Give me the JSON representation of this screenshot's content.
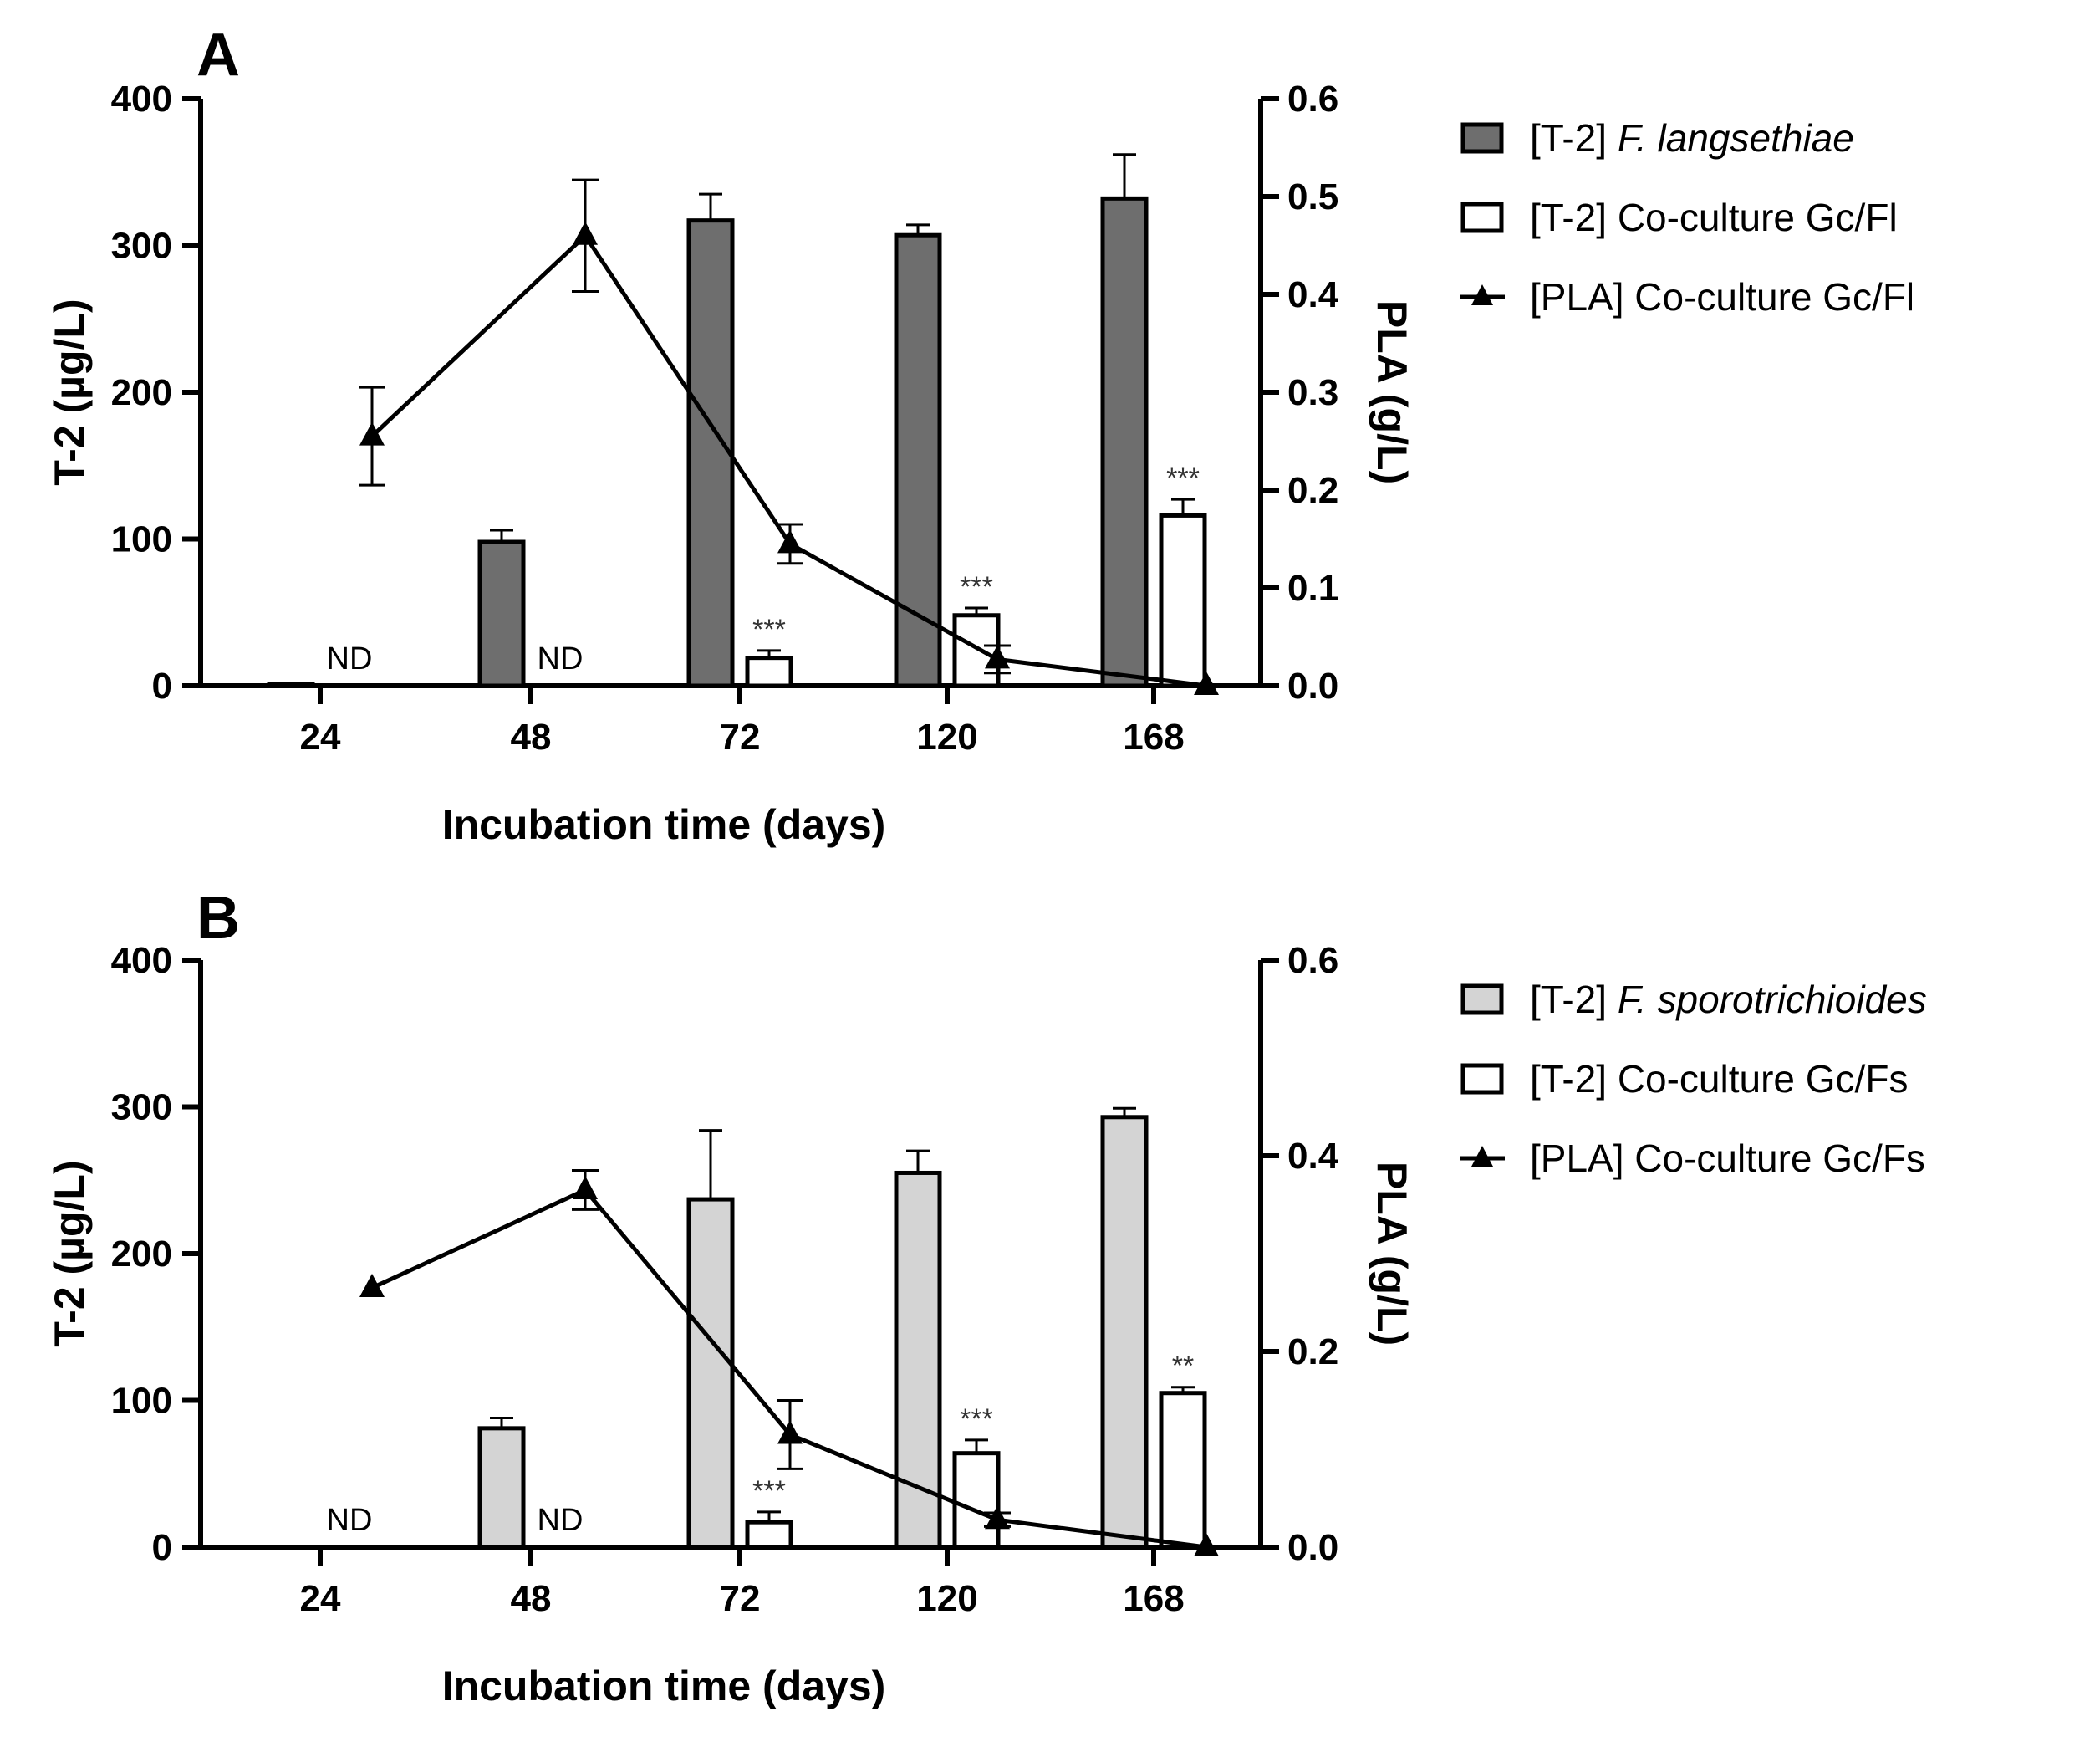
{
  "chart_data": [
    {
      "type": "bar",
      "panel_label": "A",
      "xlabel": "Incubation time (days)",
      "ylabel": "T-2 (µg/L)",
      "y2label": "PLA (g/L)",
      "categories": [
        "24",
        "48",
        "72",
        "120",
        "168"
      ],
      "ylim": [
        0,
        400
      ],
      "y2lim": [
        0,
        0.6
      ],
      "yticks": [
        "0",
        "100",
        "200",
        "300",
        "400"
      ],
      "y2ticks": [
        "0.0",
        "0.1",
        "0.2",
        "0.3",
        "0.4",
        "0.5",
        "0.6"
      ],
      "grid": false,
      "legend_position": "right",
      "series": [
        {
          "name_prefix": "[T-2]",
          "name_italic": "F. langsethiae",
          "kind": "bar",
          "fill": "#6e6e6e",
          "values": [
            1,
            98,
            317,
            307,
            332
          ],
          "errors": [
            0,
            8,
            18,
            7,
            30
          ]
        },
        {
          "name_prefix": "[T-2]",
          "name_plain": "Co-culture Gc/Fl",
          "kind": "bar",
          "fill": "#ffffff",
          "values": [
            null,
            null,
            19,
            48,
            116
          ],
          "errors": [
            0,
            0,
            5,
            5,
            11
          ],
          "nd_labels": [
            "ND",
            "ND",
            "",
            "",
            ""
          ],
          "significance": [
            "",
            "",
            "***",
            "***",
            "***"
          ]
        },
        {
          "name_prefix": "[PLA]",
          "name_plain": "Co-culture Gc/Fl",
          "kind": "line",
          "axis": "right",
          "marker": "triangle",
          "x_offsets_note": "between categories",
          "values": [
            0.255,
            0.46,
            0.145,
            0.027,
            0.0
          ],
          "errors": [
            0.05,
            0.057,
            0.02,
            0.014,
            0.0
          ]
        }
      ]
    },
    {
      "type": "bar",
      "panel_label": "B",
      "xlabel": "Incubation time (days)",
      "ylabel": "T-2 (µg/L)",
      "y2label": "PLA (g/L)",
      "categories": [
        "24",
        "48",
        "72",
        "120",
        "168"
      ],
      "ylim": [
        0,
        400
      ],
      "y2lim": [
        0,
        0.6
      ],
      "yticks": [
        "0",
        "100",
        "200",
        "300",
        "400"
      ],
      "y2ticks": [
        "0.0",
        "0.2",
        "0.4",
        "0.6"
      ],
      "grid": false,
      "legend_position": "right",
      "series": [
        {
          "name_prefix": "[T-2]",
          "name_italic": "F. sporotrichioides",
          "kind": "bar",
          "fill": "#d4d4d4",
          "values": [
            null,
            81,
            237,
            255,
            293
          ],
          "errors": [
            0,
            7,
            47,
            15,
            6
          ]
        },
        {
          "name_prefix": "[T-2]",
          "name_plain": "Co-culture Gc/Fs",
          "kind": "bar",
          "fill": "#ffffff",
          "values": [
            null,
            null,
            17,
            64,
            105
          ],
          "errors": [
            0,
            0,
            7,
            9,
            4
          ],
          "nd_labels": [
            "ND",
            "ND",
            "",
            "",
            ""
          ],
          "significance": [
            "",
            "",
            "***",
            "***",
            "**"
          ]
        },
        {
          "name_prefix": "[PLA]",
          "name_plain": "Co-culture Gc/Fs",
          "kind": "line",
          "axis": "right",
          "marker": "triangle",
          "values": [
            0.265,
            0.365,
            0.115,
            0.028,
            0.0
          ],
          "errors": [
            0.0,
            0.02,
            0.035,
            0.007,
            0.0
          ]
        }
      ]
    }
  ]
}
